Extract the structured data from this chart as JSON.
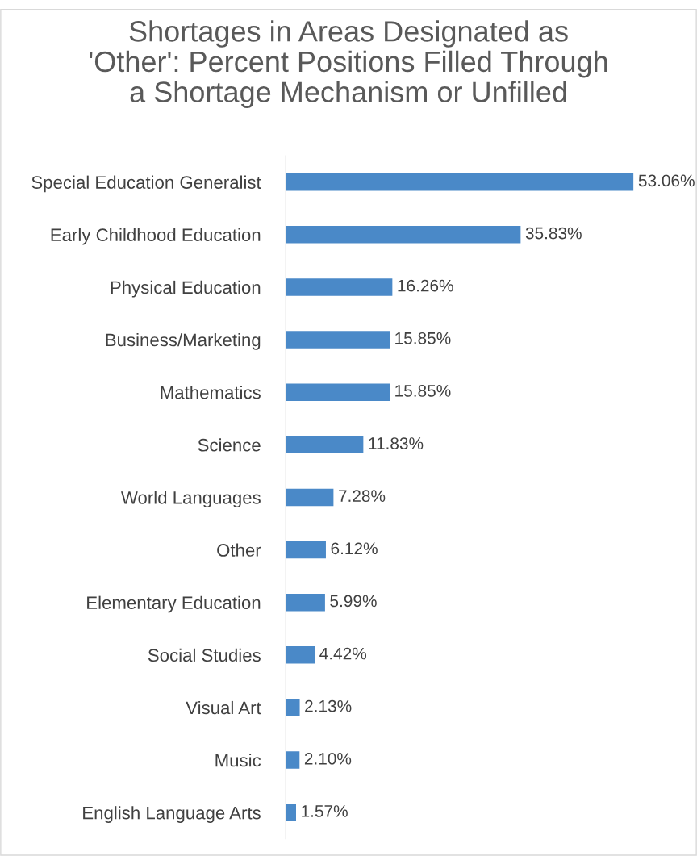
{
  "chart_data": {
    "type": "bar",
    "orientation": "horizontal",
    "title": "Shortages in Areas Designated as\n'Other': Percent Positions Filled Through\na Shortage Mechanism or Unfilled",
    "categories": [
      "Special Education Generalist",
      "Early Childhood Education",
      "Physical Education",
      "Business/Marketing",
      "Mathematics",
      "Science",
      "World Languages",
      "Other",
      "Elementary Education",
      "Social Studies",
      "Visual Art",
      "Music",
      "English Language Arts"
    ],
    "values": [
      53.06,
      35.83,
      16.26,
      15.85,
      15.85,
      11.83,
      7.28,
      6.12,
      5.99,
      4.42,
      2.13,
      2.1,
      1.57
    ],
    "value_labels": [
      "53.06%",
      "35.83%",
      "16.26%",
      "15.85%",
      "15.85%",
      "11.83%",
      "7.28%",
      "6.12%",
      "5.99%",
      "4.42%",
      "2.13%",
      "2.10%",
      "1.57%"
    ],
    "color": "#4a89c8",
    "tick_labels": "y",
    "grid": false,
    "legend": false
  }
}
